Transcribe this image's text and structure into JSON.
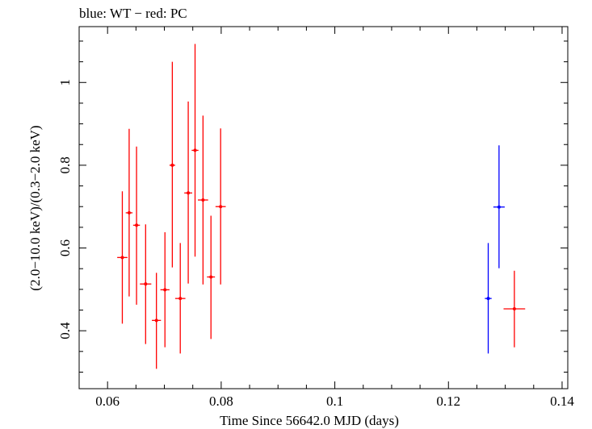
{
  "chart_data": {
    "type": "scatter",
    "title": "blue: WT − red: PC",
    "xlabel": "Time Since 56642.0 MJD (days)",
    "ylabel": "(2.0−10.0 keV)/(0.3−2.0 keV)",
    "xlim": [
      0.055,
      0.141
    ],
    "ylim": [
      0.26,
      1.135
    ],
    "xticks": [
      0.06,
      0.08,
      0.1,
      0.12,
      0.14
    ],
    "xtick_labels": [
      "0.06",
      "0.08",
      "0.1",
      "0.12",
      "0.14"
    ],
    "yticks": [
      0.4,
      0.6,
      0.8,
      1.0
    ],
    "ytick_labels": [
      "0.4",
      "0.6",
      "0.8",
      "1"
    ],
    "grid": false,
    "series": [
      {
        "color": "#ff0000",
        "points": [
          {
            "x": 0.0626,
            "y": 0.577,
            "xerr": 0.0009,
            "ylo": 0.417,
            "yhi": 0.737
          },
          {
            "x": 0.0638,
            "y": 0.685,
            "xerr": 0.0006,
            "ylo": 0.483,
            "yhi": 0.888
          },
          {
            "x": 0.0651,
            "y": 0.655,
            "xerr": 0.0006,
            "ylo": 0.463,
            "yhi": 0.845
          },
          {
            "x": 0.0667,
            "y": 0.513,
            "xerr": 0.001,
            "ylo": 0.368,
            "yhi": 0.657
          },
          {
            "x": 0.0686,
            "y": 0.425,
            "xerr": 0.0008,
            "ylo": 0.308,
            "yhi": 0.54
          },
          {
            "x": 0.0701,
            "y": 0.499,
            "xerr": 0.0008,
            "ylo": 0.36,
            "yhi": 0.638
          },
          {
            "x": 0.0714,
            "y": 0.8,
            "xerr": 0.0005,
            "ylo": 0.553,
            "yhi": 1.05
          },
          {
            "x": 0.0728,
            "y": 0.478,
            "xerr": 0.0009,
            "ylo": 0.345,
            "yhi": 0.612
          },
          {
            "x": 0.0742,
            "y": 0.733,
            "xerr": 0.0007,
            "ylo": 0.514,
            "yhi": 0.954
          },
          {
            "x": 0.0754,
            "y": 0.836,
            "xerr": 0.0006,
            "ylo": 0.579,
            "yhi": 1.093
          },
          {
            "x": 0.0768,
            "y": 0.716,
            "xerr": 0.0009,
            "ylo": 0.512,
            "yhi": 0.92
          },
          {
            "x": 0.0782,
            "y": 0.53,
            "xerr": 0.0007,
            "ylo": 0.38,
            "yhi": 0.678
          },
          {
            "x": 0.0799,
            "y": 0.7,
            "xerr": 0.0009,
            "ylo": 0.512,
            "yhi": 0.889
          },
          {
            "x": 0.1316,
            "y": 0.453,
            "xerr": 0.0019,
            "ylo": 0.36,
            "yhi": 0.545
          }
        ]
      },
      {
        "color": "#0000ff",
        "points": [
          {
            "x": 0.127,
            "y": 0.478,
            "xerr": 0.0006,
            "ylo": 0.345,
            "yhi": 0.612
          },
          {
            "x": 0.1289,
            "y": 0.699,
            "xerr": 0.001,
            "ylo": 0.551,
            "yhi": 0.848
          }
        ]
      }
    ]
  }
}
